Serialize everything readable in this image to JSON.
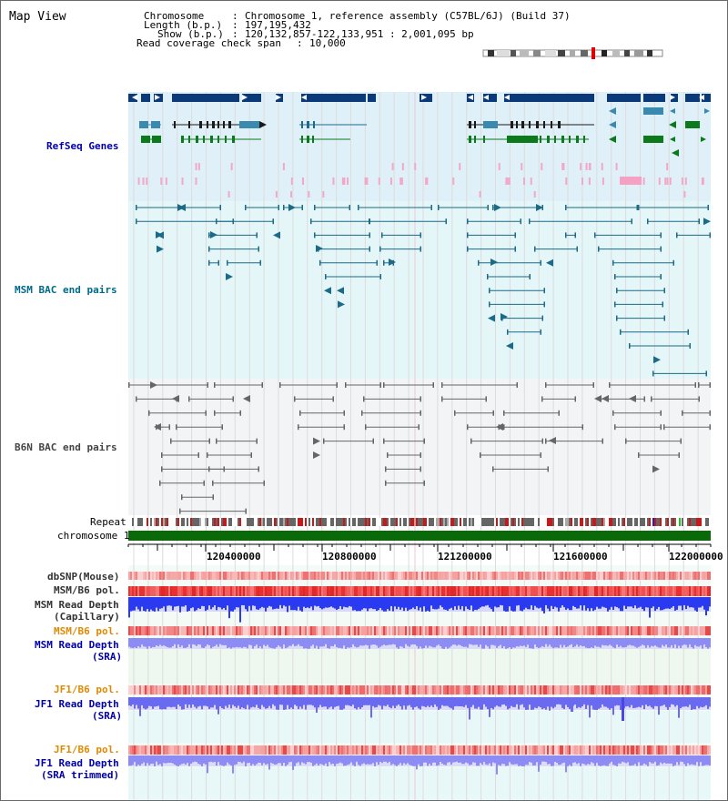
{
  "window_title": "Map View",
  "header": {
    "chromosome_label": "Chromosome",
    "chromosome_value": "Chromosome 1, reference assembly (C57BL/6J) (Build 37)",
    "length_label": "Length (b.p.)",
    "length_value": "197,195,432",
    "show_label": "Show (b.p.)",
    "show_value": "120,132,857-122,133,951 : 2,001,095 bp",
    "coverage_label": "Read coverage check span",
    "coverage_value": "10,000"
  },
  "tracks": {
    "refseq": "RefSeq Genes",
    "msm_bac": "MSM BAC end pairs",
    "b6n_bac": "B6N BAC end pairs",
    "repeat": "Repeat",
    "chromosome": "chromosome 1",
    "dbsnp": "dbSNP(Mouse)",
    "msm_b6_pol_1": "MSM/B6 pol.",
    "msm_read_depth_cap_1": "MSM Read Depth",
    "msm_read_depth_cap_2": "(Capillary)",
    "msm_b6_pol_2": "MSM/B6 pol.",
    "msm_read_depth_sra_1": "MSM Read Depth",
    "msm_read_depth_sra_2": "(SRA)",
    "jf1_b6_pol_1": "JF1/B6 pol.",
    "jf1_read_depth_sra_1": "JF1 Read Depth",
    "jf1_read_depth_sra_2": "(SRA)",
    "jf1_b6_pol_2": "JF1/B6 pol.",
    "jf1_read_depth_trim_1": "JF1 Read Depth",
    "jf1_read_depth_trim_2": "(SRA trimmed)"
  },
  "axis": {
    "ticks": [
      "120400000",
      "120800000",
      "121200000",
      "121600000",
      "122000000"
    ]
  },
  "colors": {
    "refseq_bg": "#dff0f8",
    "msm_bg": "#e4f6f8",
    "b6n_bg": "#f2f4f6",
    "navy": "#0a3a7a",
    "teal": "#1a6a88",
    "green": "#0a7a1a",
    "chromosome": "#0a6a0a",
    "label_blue": "#0000aa",
    "label_teal": "#006a88",
    "label_orange": "#e08a00"
  }
}
